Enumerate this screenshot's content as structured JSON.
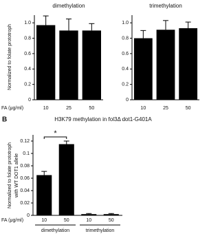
{
  "chart_data": [
    {
      "type": "bar",
      "title": "dimethylation",
      "ylabel": [
        "Normalized to folate prototroph"
      ],
      "xlabel": "FA (μg/ml)",
      "categories": [
        "10",
        "25",
        "50"
      ],
      "values": [
        0.97,
        0.9,
        0.9
      ],
      "errors": [
        0.12,
        0.15,
        0.09
      ],
      "color": "#000000",
      "ylim": [
        0,
        1.1
      ],
      "yticks": [
        0,
        0.2,
        0.4,
        0.6,
        0.8,
        {
          "value": 1,
          "label": "1.0"
        }
      ]
    },
    {
      "type": "bar",
      "title": "trimethylation",
      "categories": [
        "10",
        "25",
        "50"
      ],
      "values": [
        0.8,
        0.91,
        0.93
      ],
      "errors": [
        0.1,
        0.12,
        0.08
      ],
      "color": "#000000",
      "ylim": [
        0,
        1.1
      ],
      "yticks": [
        0,
        0.2,
        0.4,
        0.6,
        0.8,
        {
          "value": 1,
          "label": "1.0"
        }
      ]
    },
    {
      "type": "bar",
      "panel_label": "B",
      "title": "H3K79 methylation in fol3Δ dot1-G401A",
      "ylabel": [
        "Normalized to folate prototroph",
        "with WT DOT1 allele"
      ],
      "xlabel": "FA (μg/ml)",
      "categories": [
        "10",
        "50",
        "10",
        "50"
      ],
      "groups": [
        "dimethylation",
        "trimethylation"
      ],
      "values": [
        0.065,
        0.115,
        0.002,
        0.002
      ],
      "errors": [
        0.006,
        0.005,
        0.001,
        0.001
      ],
      "color": "#000000",
      "annotation": "*",
      "ylim": [
        0,
        0.13
      ],
      "yticks": [
        0,
        0.02,
        0.04,
        0.06,
        0.08,
        0.1,
        0.12
      ]
    }
  ]
}
